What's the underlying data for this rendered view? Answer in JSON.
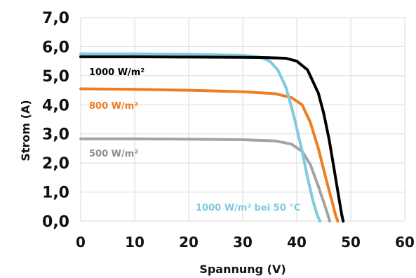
{
  "chart_data": {
    "type": "line",
    "title": "",
    "xlabel": "Spannung (V)",
    "ylabel": "Strom (A)",
    "xlim": [
      0,
      60
    ],
    "ylim": [
      0,
      7
    ],
    "xticks": [
      0,
      10,
      20,
      30,
      40,
      50,
      60
    ],
    "yticks": [
      0,
      1,
      2,
      3,
      4,
      5,
      6,
      7
    ],
    "xtick_labels": [
      "0",
      "10",
      "20",
      "30",
      "40",
      "50",
      "60"
    ],
    "ytick_labels": [
      "0,0",
      "1,0",
      "2,0",
      "3,0",
      "4,0",
      "5,0",
      "6,0",
      "7,0"
    ],
    "grid": true,
    "legend": "none",
    "series": [
      {
        "name": "1000 W/m²",
        "color": "#000000",
        "label_color": "#000000",
        "x": [
          0,
          10,
          20,
          30,
          35,
          38,
          40,
          42,
          44,
          45,
          46,
          47,
          47.8,
          48.3,
          48.6
        ],
        "y": [
          5.65,
          5.65,
          5.64,
          5.63,
          5.62,
          5.6,
          5.5,
          5.2,
          4.4,
          3.7,
          2.8,
          1.7,
          0.8,
          0.25,
          0
        ]
      },
      {
        "name": "800 W/m²",
        "color": "#ef7d22",
        "label_color": "#ef7d22",
        "x": [
          0,
          10,
          20,
          30,
          36,
          39,
          41,
          42.5,
          44,
          45.5,
          46.5,
          47.2,
          47.6
        ],
        "y": [
          4.55,
          4.53,
          4.5,
          4.45,
          4.38,
          4.25,
          4.0,
          3.4,
          2.5,
          1.4,
          0.7,
          0.2,
          0
        ]
      },
      {
        "name": "500 W/m²",
        "color": "#a3a3a3",
        "label_color": "#8f8f8f",
        "x": [
          0,
          10,
          20,
          30,
          36,
          39,
          41,
          42.5,
          44,
          45,
          45.7,
          46.1
        ],
        "y": [
          2.83,
          2.83,
          2.82,
          2.8,
          2.76,
          2.65,
          2.4,
          1.95,
          1.2,
          0.65,
          0.25,
          0
        ]
      },
      {
        "name": "1000 W/m² bei 50 °C",
        "color": "#7ecbdc",
        "label_color": "#7ecbdc",
        "x": [
          0,
          10,
          20,
          30,
          33,
          35,
          36.5,
          38,
          39.5,
          41,
          42,
          43,
          43.8,
          44.3
        ],
        "y": [
          5.75,
          5.75,
          5.74,
          5.7,
          5.65,
          5.5,
          5.2,
          4.6,
          3.6,
          2.4,
          1.5,
          0.7,
          0.2,
          0
        ]
      }
    ]
  }
}
